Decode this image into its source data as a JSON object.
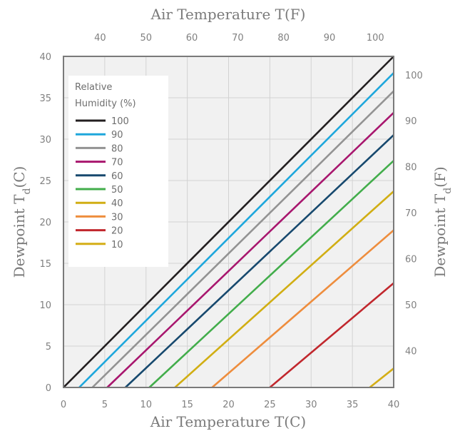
{
  "chart_data": {
    "type": "line",
    "title": "",
    "xlabel": "Air Temperature T(C)",
    "ylabel": "Dewpoint Td(C)",
    "x2label": "Air Temperature T(F)",
    "y2label": "Dewpoint Td(F)",
    "xlim": [
      0,
      40
    ],
    "ylim": [
      0,
      40
    ],
    "x2lim": [
      32,
      104
    ],
    "y2lim": [
      32,
      104
    ],
    "x_ticks": [
      0,
      5,
      10,
      15,
      20,
      25,
      30,
      35,
      40
    ],
    "y_ticks": [
      0,
      5,
      10,
      15,
      20,
      25,
      30,
      35,
      40
    ],
    "x2_ticks": [
      40,
      50,
      60,
      70,
      80,
      90,
      100
    ],
    "y2_ticks": [
      40,
      50,
      60,
      70,
      80,
      90,
      100
    ],
    "grid": true,
    "legend": {
      "title": "Relative Humidity (%)",
      "position": "top-left"
    },
    "series": [
      {
        "name": "100",
        "color": "#231f20",
        "x": [
          0,
          40
        ],
        "y": [
          0.0,
          40.0
        ]
      },
      {
        "name": "90",
        "color": "#1ea7dc",
        "x": [
          1.9,
          40
        ],
        "y": [
          0.0,
          38.0
        ]
      },
      {
        "name": "80",
        "color": "#939393",
        "x": [
          3.5,
          40
        ],
        "y": [
          0.0,
          35.8
        ]
      },
      {
        "name": "70",
        "color": "#a8166e",
        "x": [
          5.3,
          40
        ],
        "y": [
          0.0,
          33.2
        ]
      },
      {
        "name": "60",
        "color": "#17496e",
        "x": [
          7.5,
          40
        ],
        "y": [
          0.0,
          30.5
        ]
      },
      {
        "name": "50",
        "color": "#42ad4b",
        "x": [
          10.4,
          40
        ],
        "y": [
          0.0,
          27.4
        ]
      },
      {
        "name": "40",
        "color": "#d1ae13",
        "x": [
          13.5,
          40
        ],
        "y": [
          0.0,
          23.7
        ]
      },
      {
        "name": "30",
        "color": "#ee8d3d",
        "x": [
          18.0,
          40
        ],
        "y": [
          0.0,
          19.0
        ]
      },
      {
        "name": "20",
        "color": "#c1272d",
        "x": [
          25.0,
          40
        ],
        "y": [
          0.0,
          12.6
        ]
      },
      {
        "name": "10",
        "color": "#d4ae16",
        "x": [
          37.1,
          40
        ],
        "y": [
          0.0,
          2.3
        ]
      }
    ]
  }
}
